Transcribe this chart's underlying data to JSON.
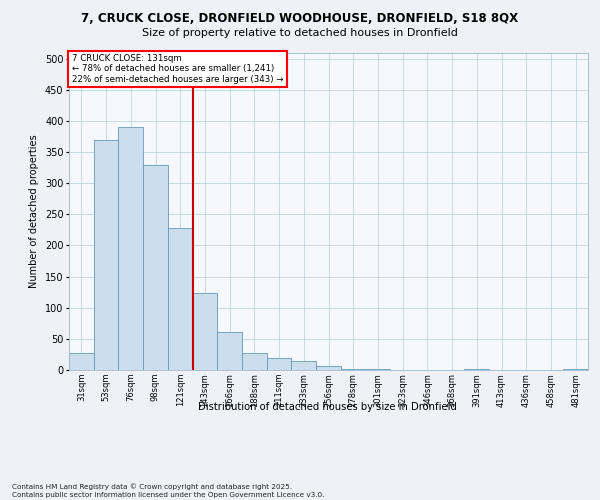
{
  "title_line1": "7, CRUCK CLOSE, DRONFIELD WOODHOUSE, DRONFIELD, S18 8QX",
  "title_line2": "Size of property relative to detached houses in Dronfield",
  "xlabel": "Distribution of detached houses by size in Dronfield",
  "ylabel": "Number of detached properties",
  "categories": [
    "31sqm",
    "53sqm",
    "76sqm",
    "98sqm",
    "121sqm",
    "143sqm",
    "166sqm",
    "188sqm",
    "211sqm",
    "233sqm",
    "256sqm",
    "278sqm",
    "301sqm",
    "323sqm",
    "346sqm",
    "368sqm",
    "391sqm",
    "413sqm",
    "436sqm",
    "458sqm",
    "481sqm"
  ],
  "values": [
    28,
    370,
    390,
    330,
    228,
    124,
    61,
    28,
    20,
    15,
    6,
    2,
    1,
    0,
    0,
    0,
    1,
    0,
    0,
    0,
    2
  ],
  "bar_color": "#ccdded",
  "bar_edge_color": "#6699bb",
  "vline_x_idx": 4.5,
  "vline_color": "#cc0000",
  "annotation_box_text": "7 CRUCK CLOSE: 131sqm\n← 78% of detached houses are smaller (1,241)\n22% of semi-detached houses are larger (343) →",
  "ylim": [
    0,
    510
  ],
  "yticks": [
    0,
    50,
    100,
    150,
    200,
    250,
    300,
    350,
    400,
    450,
    500
  ],
  "footer_text": "Contains HM Land Registry data © Crown copyright and database right 2025.\nContains public sector information licensed under the Open Government Licence v3.0.",
  "bg_color": "#eef2f7",
  "plot_bg_color": "#f5f8fc"
}
